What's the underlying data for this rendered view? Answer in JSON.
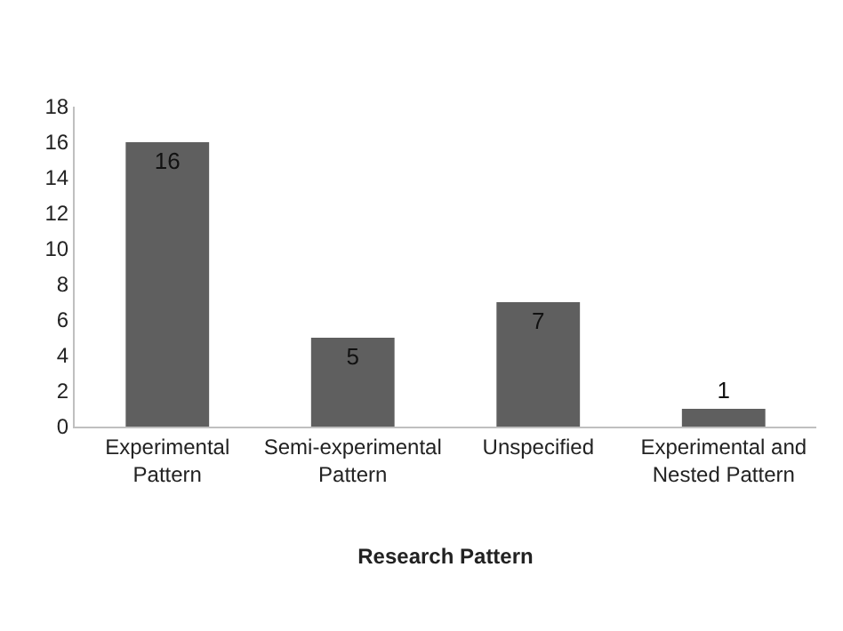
{
  "chart_data": {
    "type": "bar",
    "xlabel": "Research Pattern",
    "categories": [
      "Experimental\nPattern",
      "Semi-experimental\nPattern",
      "Unspecified",
      "Experimental and\nNested Pattern"
    ],
    "values": [
      16,
      5,
      7,
      1
    ],
    "color": "#5f5f5f",
    "ylim": [
      0,
      18
    ],
    "yticks": [
      0,
      2,
      4,
      6,
      8,
      10,
      12,
      14,
      16,
      18
    ],
    "data_labels": true,
    "legend": false
  }
}
